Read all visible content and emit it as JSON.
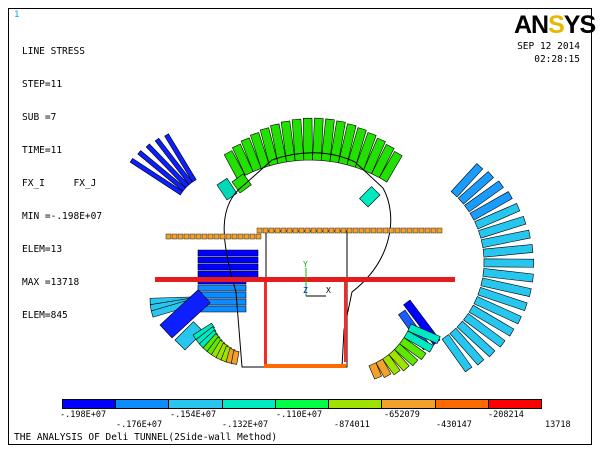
{
  "window": {
    "number": "1",
    "logo": {
      "main": "AN",
      "accent": "S",
      "tail": "YS"
    },
    "date": "SEP 12 2014",
    "time": "02:28:15"
  },
  "info": {
    "lines": [
      "LINE STRESS",
      "STEP=11",
      "SUB =7",
      "TIME=11",
      "FX_I     FX_J",
      "MIN =-.198E+07",
      "ELEM=13",
      "MAX =13718",
      "ELEM=845"
    ]
  },
  "axes": {
    "y": "Y",
    "z": "Z",
    "x": "X"
  },
  "legend": {
    "colors": [
      "#0000ff",
      "#0d8cff",
      "#27c6ef",
      "#00e9c1",
      "#00ff47",
      "#9ee300",
      "#f2a12a",
      "#ff6a00",
      "#ff0000"
    ],
    "labels_top": [
      "-.198E+07",
      "-.154E+07",
      "-.110E+07",
      "-652079",
      "-208214"
    ],
    "labels_bottom": [
      "-.176E+07",
      "-.132E+07",
      "-874011",
      "-430147",
      "13718"
    ]
  },
  "footer": {
    "title": "THE ANALYSIS OF Deli TUNNEL(2Side-wall Method)"
  }
}
